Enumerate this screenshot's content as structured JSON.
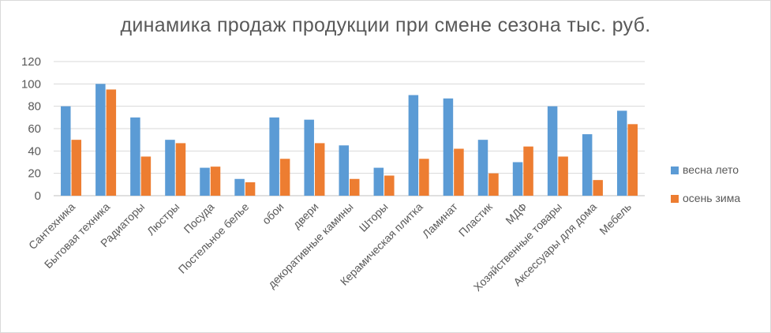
{
  "chart_data": {
    "type": "bar",
    "title": "динамика продаж продукции при смене сезона тыс. руб.",
    "xlabel": "",
    "ylabel": "",
    "ylim": [
      0,
      120
    ],
    "yticks": [
      0,
      20,
      40,
      60,
      80,
      100,
      120
    ],
    "grid": true,
    "legend_position": "right",
    "categories": [
      "Сантехника",
      "Бытовая техника",
      "Радиаторы",
      "Люстры",
      "Посуда",
      "Постельное белье",
      "обои",
      "двери",
      "декоративные камины",
      "Шторы",
      "Керамическая плитка",
      "Ламинат",
      "Пластик",
      "МДФ",
      "Хозяйственные товары",
      "Аксессуары для дома",
      "Мебель"
    ],
    "series": [
      {
        "name": "весна лето",
        "color": "#5b9bd5",
        "values": [
          80,
          100,
          70,
          50,
          25,
          15,
          70,
          68,
          45,
          25,
          90,
          87,
          50,
          30,
          80,
          55,
          76
        ]
      },
      {
        "name": "осень зима",
        "color": "#ed7d31",
        "values": [
          50,
          95,
          35,
          47,
          26,
          12,
          33,
          47,
          15,
          18,
          33,
          42,
          20,
          44,
          35,
          14,
          64
        ]
      }
    ]
  }
}
